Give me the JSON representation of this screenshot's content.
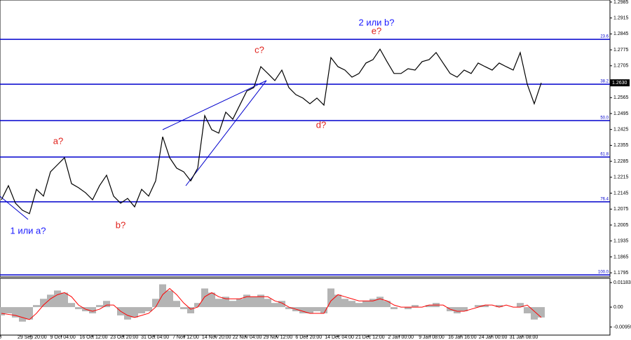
{
  "chart_data": [
    {
      "type": "line",
      "series": [
        {
          "color": "#000000",
          "values": [
            1.2116,
            1.2178,
            1.2101,
            1.207,
            1.2055,
            1.2162,
            1.2132,
            1.2239,
            1.227,
            1.2301,
            1.2187,
            1.2169,
            1.2147,
            1.2116,
            1.2178,
            1.2224,
            1.2132,
            1.2101,
            1.2122,
            1.2085,
            1.2162,
            1.2132,
            1.2199,
            1.2393,
            1.2301,
            1.2255,
            1.2239,
            1.2199,
            1.2255,
            1.2486,
            1.2424,
            1.2409,
            1.2501,
            1.247,
            1.2532,
            1.2594,
            1.2609,
            1.2701,
            1.2671,
            1.264,
            1.2686,
            1.2609,
            1.2578,
            1.2563,
            1.2538,
            1.2563,
            1.2532,
            1.2741,
            1.2701,
            1.2686,
            1.2655,
            1.2671,
            1.2717,
            1.2732,
            1.2778,
            1.2723,
            1.2671,
            1.2671,
            1.2692,
            1.2686,
            1.2723,
            1.2732,
            1.2763,
            1.2717,
            1.2671,
            1.2655,
            1.2686,
            1.2671,
            1.2717,
            1.2701,
            1.2686,
            1.2717,
            1.2701,
            1.2686,
            1.2763,
            1.2624,
            1.2538,
            1.263
          ]
        }
      ],
      "ylim": [
        1.1777,
        1.2994
      ],
      "yticks": [
        1.2985,
        1.2915,
        1.2845,
        1.2775,
        1.2705,
        1.2565,
        1.2495,
        1.2425,
        1.2355,
        1.2285,
        1.2215,
        1.2145,
        1.2075,
        1.2005,
        1.1935,
        1.1865,
        1.1795
      ],
      "last_price": {
        "value": 1.263,
        "label": "1.2630"
      },
      "fib_color": "#0000cd",
      "fib_levels": [
        {
          "level": 23.6,
          "price": 1.2821
        },
        {
          "level": 38.2,
          "price": 1.2624
        },
        {
          "level": {
            "value": 50,
            "label": "50.0"
          },
          "price": 1.2464
        },
        {
          "level": 61.8,
          "price": 1.2304
        },
        {
          "level": 76.4,
          "price": 1.2107
        },
        {
          "level": {
            "value": 100,
            "label": "100.0"
          },
          "price": 1.1786
        }
      ],
      "annotations": [
        {
          "text": "1 или a?",
          "color": "#1a1aff"
        },
        {
          "text": "a?",
          "color": "#e0201a"
        },
        {
          "text": "b?",
          "color": "#e0201a"
        },
        {
          "text": "c?",
          "color": "#e0201a"
        },
        {
          "text": "d?",
          "color": "#e0201a"
        },
        {
          "text": "2 или b?",
          "color": "#1a1aff"
        },
        {
          "text": "e?",
          "color": "#e0201a"
        }
      ],
      "x_labels": [
        "2:00",
        "29 Sep 20:00",
        "9 Oct 04:00",
        "16 Oct 12:00",
        "23 Oct 20:00",
        "31 Oct 04:00",
        "7 Nov 12:00",
        "14 Nov 20:00",
        "22 Nov 04:00",
        "29 Nov 12:00",
        "6 Dec 20:00",
        "14 Dec 04:00",
        "21 Dec 12:00",
        "2 Jan 00:00",
        "9 Jan 08:00",
        "16 Jan 16:00",
        "24 Jan 00:00",
        "31 Jan 08:00"
      ]
    },
    {
      "type": "oscillator",
      "color": "#b4b4b4",
      "values": [
        -0.004,
        -0.003,
        -0.005,
        -0.007,
        -0.006,
        0.001,
        0.004,
        0.006,
        0.008,
        0.007,
        0.002,
        -0.001,
        -0.002,
        -0.003,
        0.001,
        0.003,
        0,
        -0.004,
        -0.006,
        -0.005,
        -0.003,
        -0.002,
        0.004,
        0.011,
        0.008,
        0.003,
        -0.001,
        -0.003,
        0.002,
        0.009,
        0.007,
        0.004,
        0.005,
        0.003,
        0.004,
        0.006,
        0.005,
        0.006,
        0.004,
        0.002,
        0.003,
        -0.001,
        -0.002,
        -0.003,
        -0.003,
        -0.002,
        -0.003,
        0.009,
        0.006,
        0.004,
        0.003,
        0.002,
        0.003,
        0.004,
        0.005,
        0.003,
        -0.001,
        0,
        -0.001,
        0.001,
        0,
        0.001,
        0.002,
        0,
        -0.002,
        -0.003,
        -0.002,
        0,
        0.001,
        0.001,
        0,
        0.001,
        0,
        0,
        0.002,
        -0.003,
        -0.006,
        -0.005
      ],
      "signal": {
        "color": "#ff0000",
        "values": [
          -0.003,
          -0.0035,
          -0.004,
          -0.005,
          -0.006,
          -0.003,
          0.001,
          0.004,
          0.006,
          0.007,
          0.005,
          0.001,
          -0.001,
          -0.002,
          -0.001,
          0.001,
          0.001,
          -0.002,
          -0.004,
          -0.005,
          -0.004,
          -0.003,
          0,
          0.006,
          0.009,
          0.006,
          0.002,
          -0.001,
          0,
          0.005,
          0.007,
          0.005,
          0.004,
          0.004,
          0.004,
          0.005,
          0.005,
          0.005,
          0.005,
          0.003,
          0.002,
          0,
          -0.001,
          -0.002,
          -0.003,
          -0.003,
          -0.003,
          0.003,
          0.006,
          0.005,
          0.004,
          0.003,
          0.003,
          0.003,
          0.004,
          0.003,
          0.001,
          0,
          0,
          0,
          0,
          0.001,
          0.001,
          0.001,
          -0.001,
          -0.002,
          -0.002,
          -0.001,
          0,
          0.001,
          0.001,
          0,
          0.001,
          0,
          0,
          0.001,
          -0.002,
          -0.005
        ]
      },
      "ylim": [
        -0.0135,
        0.0139
      ],
      "yticks": [
        0.01183,
        {
          "value": 0,
          "label": "0.00"
        },
        -0.00959
      ]
    }
  ]
}
